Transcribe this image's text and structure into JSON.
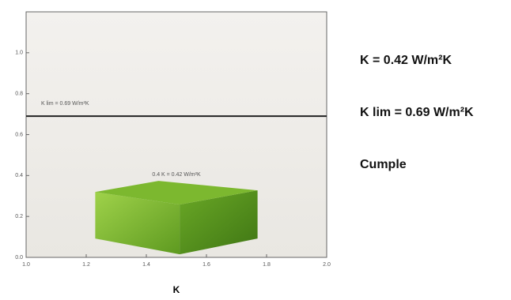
{
  "chart_data": {
    "type": "box3d",
    "xlabel": "K",
    "xlim": [
      1.0,
      2.0
    ],
    "xticks": [
      {
        "value": 1.0,
        "label": "1.0"
      },
      1.2,
      1.4,
      1.6,
      1.8,
      {
        "value": 2.0,
        "label": "2.0"
      }
    ],
    "ylim": [
      0,
      1.2
    ],
    "yticks": [
      {
        "value": 0,
        "label": "0.0"
      },
      0.2,
      0.4,
      0.6,
      0.8,
      {
        "value": 1.0,
        "label": "1.0"
      }
    ],
    "bar": {
      "x": [
        1.23,
        1.77
      ],
      "value": 0.42,
      "value_label": "0.4 K = 0.42 W/m²K",
      "color": "#7cb82f"
    },
    "limit": {
      "value": 0.69,
      "label": "K lim = 0.69 W/m²K",
      "color": "#222222"
    }
  },
  "side_text": [
    "K = 0.42 W/m²K",
    "K lim = 0.69 W/m²K",
    "Cumple"
  ]
}
